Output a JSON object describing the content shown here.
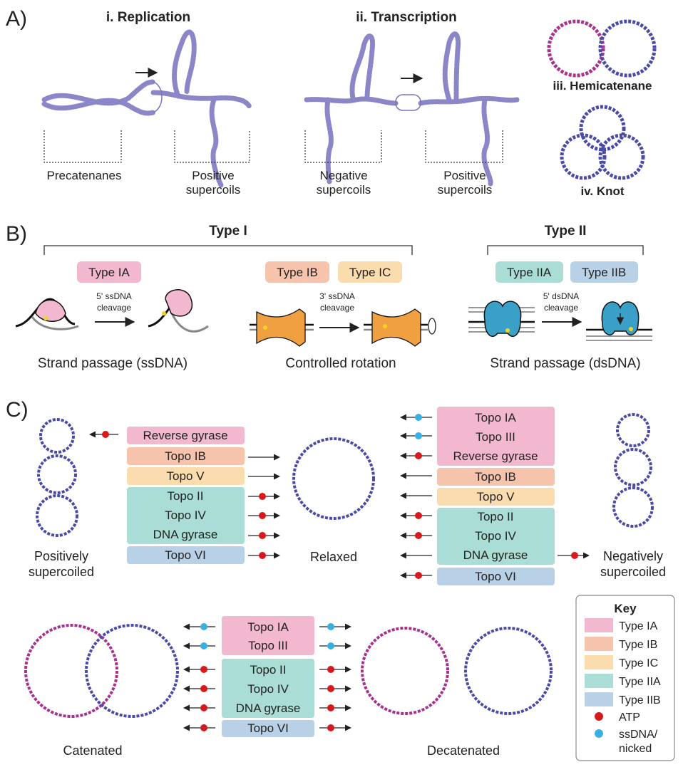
{
  "panels": {
    "a": "A)",
    "b": "B)",
    "c": "C)"
  },
  "section_a": {
    "replication_title": "i. Replication",
    "transcription_title": "ii. Transcription",
    "hemicatenane_label": "iii. Hemicatenane",
    "knot_label": "iv. Knot",
    "precatenanes": "Precatenanes",
    "positive_supercoils_line1": "Positive",
    "positive_supercoils_line2": "supercoils",
    "negative_supercoils_line1": "Negative",
    "negative_supercoils_line2": "supercoils"
  },
  "section_b": {
    "type1_title": "Type I",
    "type2_title": "Type II",
    "type_ia": "Type IA",
    "type_ib": "Type IB",
    "type_ic": "Type IC",
    "type_iia": "Type IIA",
    "type_iib": "Type IIB",
    "cleave_ia_1": "5' ssDNA",
    "cleave_ia_2": "cleavage",
    "cleave_ib_1": "3' ssDNA",
    "cleave_ib_2": "cleavage",
    "cleave_ii_1": "5' dsDNA",
    "cleave_ii_2": "cleavage",
    "mech_ia": "Strand passage (ssDNA)",
    "mech_ib": "Controlled rotation",
    "mech_ii": "Strand passage (dsDNA)"
  },
  "section_c": {
    "positively_1": "Positively",
    "positively_2": "supercoiled",
    "relaxed": "Relaxed",
    "negatively_1": "Negatively",
    "negatively_2": "supercoiled",
    "catenated": "Catenated",
    "decatenated": "Decatenated",
    "left_list": {
      "reverse_gyrase": "Reverse gyrase",
      "topo_ib": "Topo IB",
      "topo_v": "Topo V",
      "topo_ii": "Topo II",
      "topo_iv": "Topo IV",
      "dna_gyrase": "DNA gyrase",
      "topo_vi": "Topo VI"
    },
    "right_list": {
      "topo_ia": "Topo IA",
      "topo_iii": "Topo III",
      "reverse_gyrase": "Reverse gyrase",
      "topo_ib": "Topo IB",
      "topo_v": "Topo V",
      "topo_ii": "Topo II",
      "topo_iv": "Topo IV",
      "dna_gyrase": "DNA gyrase",
      "topo_vi": "Topo VI"
    },
    "cat_list": {
      "topo_ia": "Topo IA",
      "topo_iii": "Topo III",
      "topo_ii": "Topo II",
      "topo_iv": "Topo IV",
      "dna_gyrase": "DNA gyrase",
      "topo_vi": "Topo VI"
    }
  },
  "key": {
    "title": "Key",
    "type_ia": "Type IA",
    "type_ib": "Type IB",
    "type_ic": "Type IC",
    "type_iia": "Type IIA",
    "type_iib": "Type IIB",
    "atp": "ATP",
    "ssdna_1": "ssDNA/",
    "ssdna_2": "nicked"
  },
  "colors": {
    "type_ia": "#f2b8cf",
    "type_ib": "#f6c4ad",
    "type_ic": "#fbdcae",
    "type_iia": "#a9ddd5",
    "type_iib": "#b9d1e7",
    "atp": "#d7191c",
    "ssdna": "#3ab0e2",
    "dna_blue": "#4a4aa8",
    "dna_magenta": "#a8308f"
  }
}
